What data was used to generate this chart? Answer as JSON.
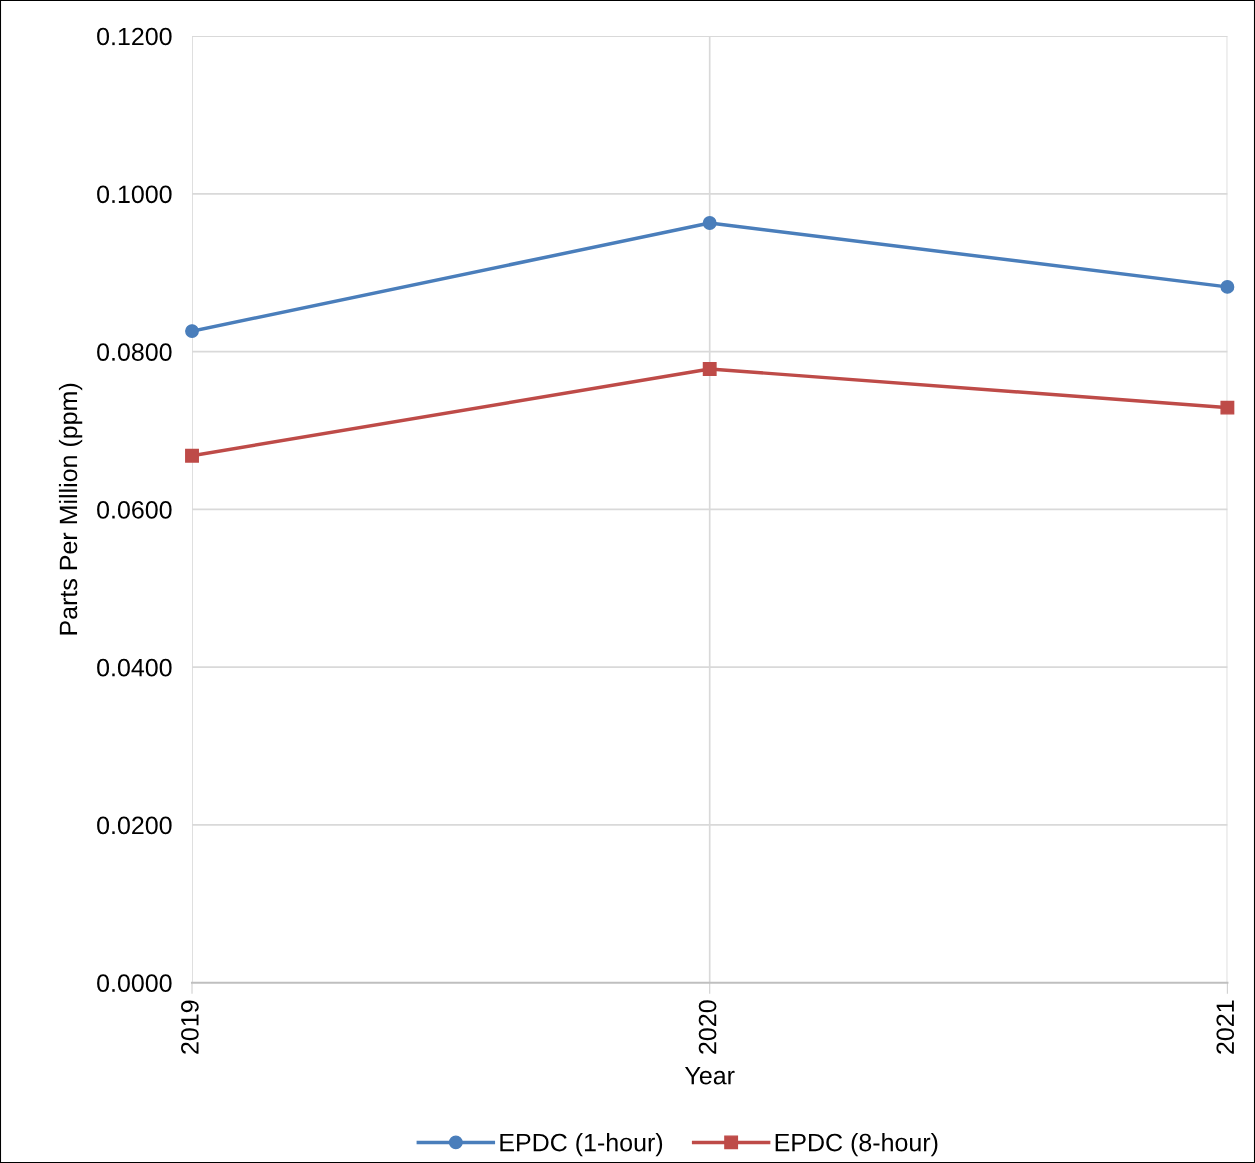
{
  "chart_data": {
    "type": "line",
    "xlabel": "Year",
    "ylabel": "Parts Per Million (ppm)",
    "categories": [
      "2019",
      "2020",
      "2021"
    ],
    "series": [
      {
        "name": "EPDC (1-hour)",
        "color": "#4a7ebb",
        "marker": "circle",
        "values": [
          0.0826,
          0.0963,
          0.0882
        ]
      },
      {
        "name": "EPDC (8-hour)",
        "color": "#be4b48",
        "marker": "square",
        "values": [
          0.0668,
          0.0778,
          0.0729
        ]
      }
    ],
    "ylim": [
      0,
      0.12
    ],
    "yticks": [
      {
        "value": 0,
        "label": "0.0000"
      },
      {
        "value": 0.02,
        "label": "0.0200"
      },
      {
        "value": 0.04,
        "label": "0.0400"
      },
      {
        "value": 0.06,
        "label": "0.0600"
      },
      {
        "value": 0.08,
        "label": "0.0800"
      },
      {
        "value": 0.1,
        "label": "0.1000"
      },
      {
        "value": 0.12,
        "label": "0.1200"
      }
    ],
    "grid": true,
    "legend": "bottom",
    "line_style": "solid"
  }
}
